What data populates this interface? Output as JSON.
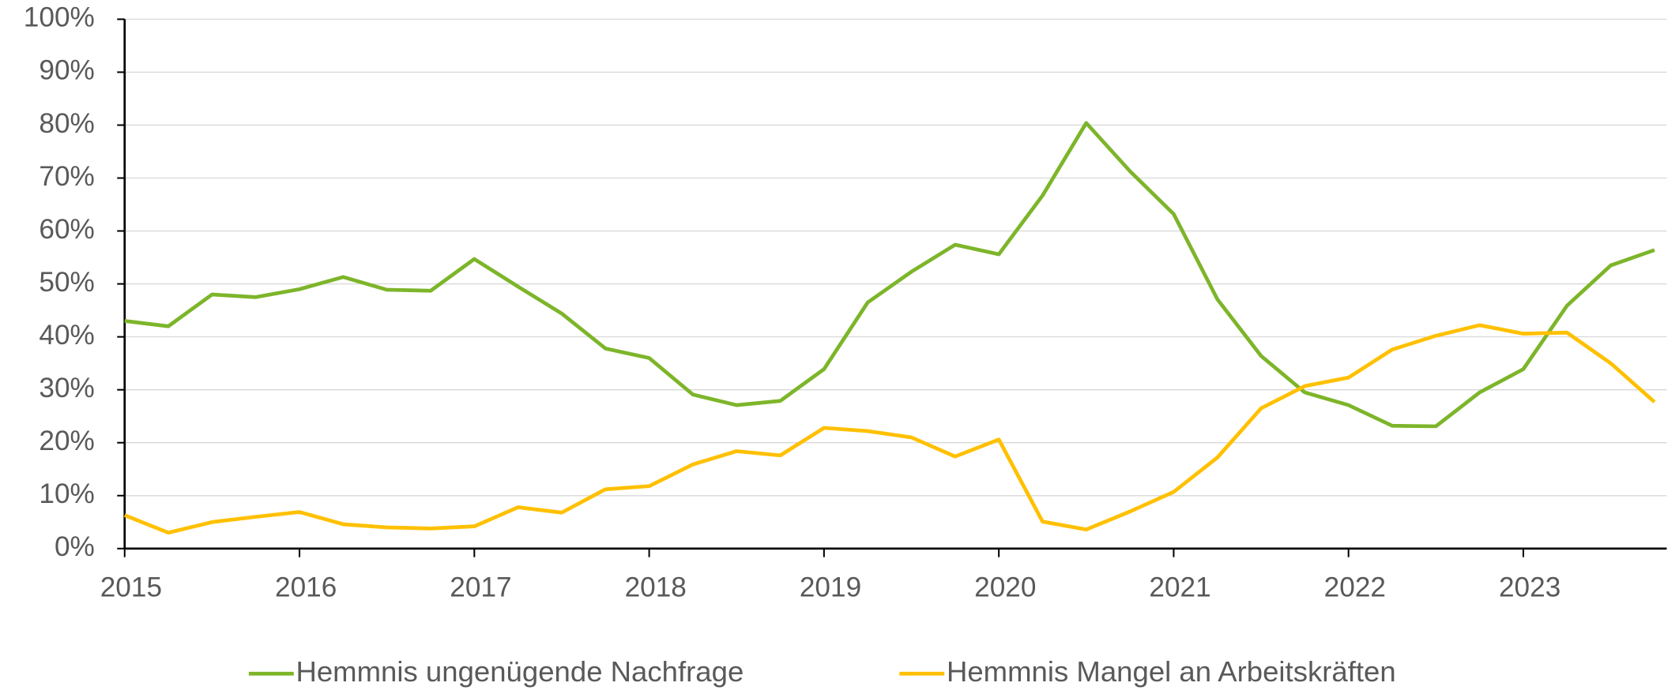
{
  "chart_data": {
    "type": "line",
    "x": [
      2015,
      2015.25,
      2015.5,
      2015.75,
      2016,
      2016.25,
      2016.5,
      2016.75,
      2017,
      2017.25,
      2017.5,
      2017.75,
      2018,
      2018.25,
      2018.5,
      2018.75,
      2019,
      2019.25,
      2019.5,
      2019.75,
      2020,
      2020.25,
      2020.5,
      2020.75,
      2021,
      2021.25,
      2021.5,
      2021.75,
      2022,
      2022.25,
      2022.5,
      2022.75,
      2023,
      2023.25,
      2023.5,
      2023.75
    ],
    "series": [
      {
        "name": "Hemmnis ungenügende Nachfrage",
        "color": "#7db52a",
        "values": [
          43,
          42,
          48,
          47.5,
          49,
          51.3,
          48.9,
          48.7,
          54.7,
          49.5,
          44.4,
          37.8,
          36,
          29.1,
          27.1,
          27.9,
          33.9,
          46.5,
          52.3,
          57.4,
          55.6,
          66.7,
          80.4,
          71.3,
          63.2,
          47.1,
          36.4,
          29.5,
          27.1,
          23.2,
          23.1,
          29.5,
          33.9,
          45.9,
          53.5,
          56.4
        ]
      },
      {
        "name": "Hemmnis Mangel an Arbeitskräften",
        "color": "#ffc000",
        "values": [
          6.3,
          3,
          5,
          6,
          6.9,
          4.6,
          4,
          3.8,
          4.2,
          7.8,
          6.8,
          11.2,
          11.8,
          15.9,
          18.4,
          17.6,
          22.8,
          22.2,
          21,
          17.4,
          20.6,
          5.1,
          3.6,
          7,
          10.7,
          17.2,
          26.5,
          30.7,
          32.3,
          37.6,
          40.2,
          42.2,
          40.6,
          40.8,
          35,
          27.7
        ]
      }
    ],
    "xlim": [
      2015,
      2023.82
    ],
    "xticks": [
      2015,
      2016,
      2017,
      2018,
      2019,
      2020,
      2021,
      2022,
      2023
    ],
    "ylim": [
      0,
      100
    ],
    "yticks": [
      {
        "value": 0,
        "label": "0%"
      },
      {
        "value": 10,
        "label": "10%"
      },
      {
        "value": 20,
        "label": "20%"
      },
      {
        "value": 30,
        "label": "30%"
      },
      {
        "value": 40,
        "label": "40%"
      },
      {
        "value": 50,
        "label": "50%"
      },
      {
        "value": 60,
        "label": "60%"
      },
      {
        "value": 70,
        "label": "70%"
      },
      {
        "value": 80,
        "label": "80%"
      },
      {
        "value": 90,
        "label": "90%"
      },
      {
        "value": 100,
        "label": "100%"
      }
    ],
    "grid": true,
    "legend": "bottom"
  }
}
